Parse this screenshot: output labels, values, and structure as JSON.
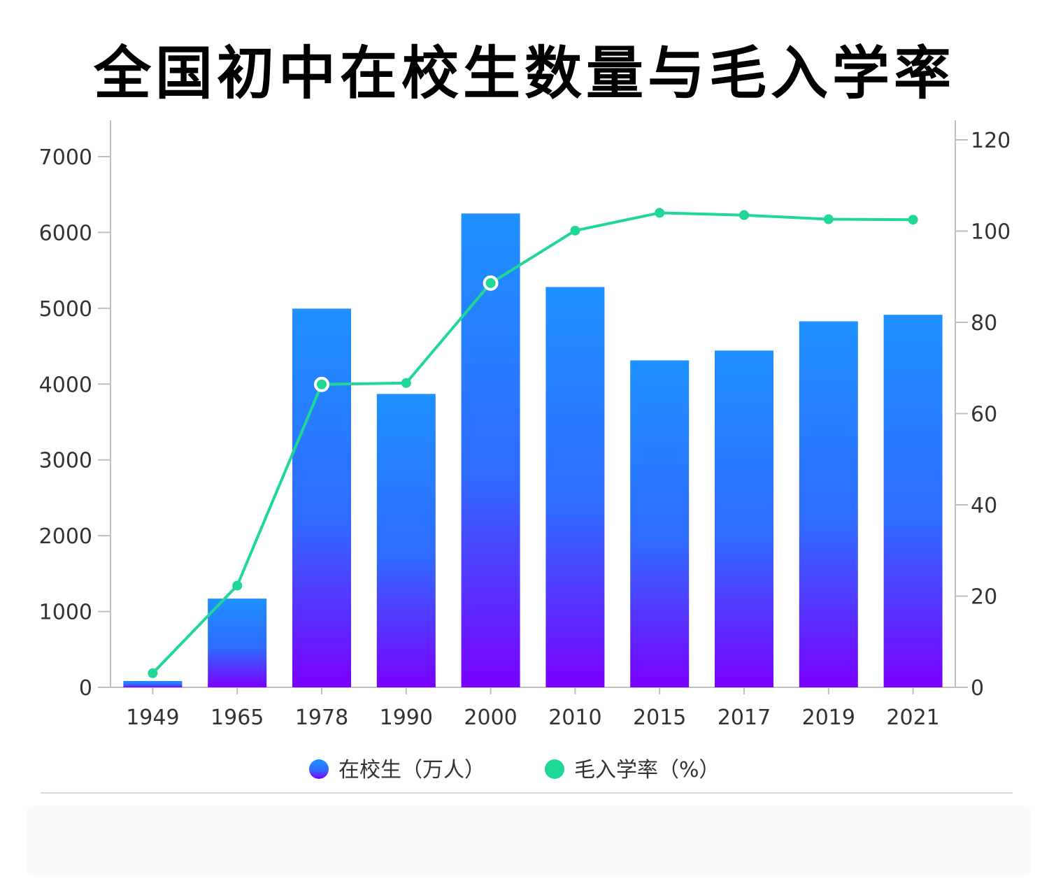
{
  "chart_data": {
    "type": "bar",
    "title": "全国初中在校生数量与毛入学率",
    "categories": [
      "1949",
      "1965",
      "1978",
      "1990",
      "2000",
      "2010",
      "2015",
      "2017",
      "2019",
      "2021"
    ],
    "series": [
      {
        "name": "在校生（万人）",
        "type": "bar",
        "axis": "left",
        "color": "#1e90ff",
        "gradient_bottom": "#7a00ff",
        "values": [
          84,
          1170,
          4995,
          3870,
          6250,
          5280,
          4312,
          4442,
          4828,
          4914
        ]
      },
      {
        "name": "毛入学率（%）",
        "type": "line",
        "axis": "right",
        "color": "#20d895",
        "values": [
          3.1,
          22.3,
          66.4,
          66.7,
          88.6,
          100.1,
          104.0,
          103.5,
          102.6,
          102.5
        ]
      }
    ],
    "y_left": {
      "range": [
        0,
        7500
      ],
      "ticks": [
        "0",
        "1000",
        "2000",
        "3000",
        "4000",
        "5000",
        "6000",
        "7000"
      ]
    },
    "y_right": {
      "range": [
        0,
        120
      ],
      "ticks": [
        "0",
        "20",
        "40",
        "60",
        "80",
        "100",
        "120"
      ]
    },
    "legend_position": "bottom",
    "grid": false
  }
}
